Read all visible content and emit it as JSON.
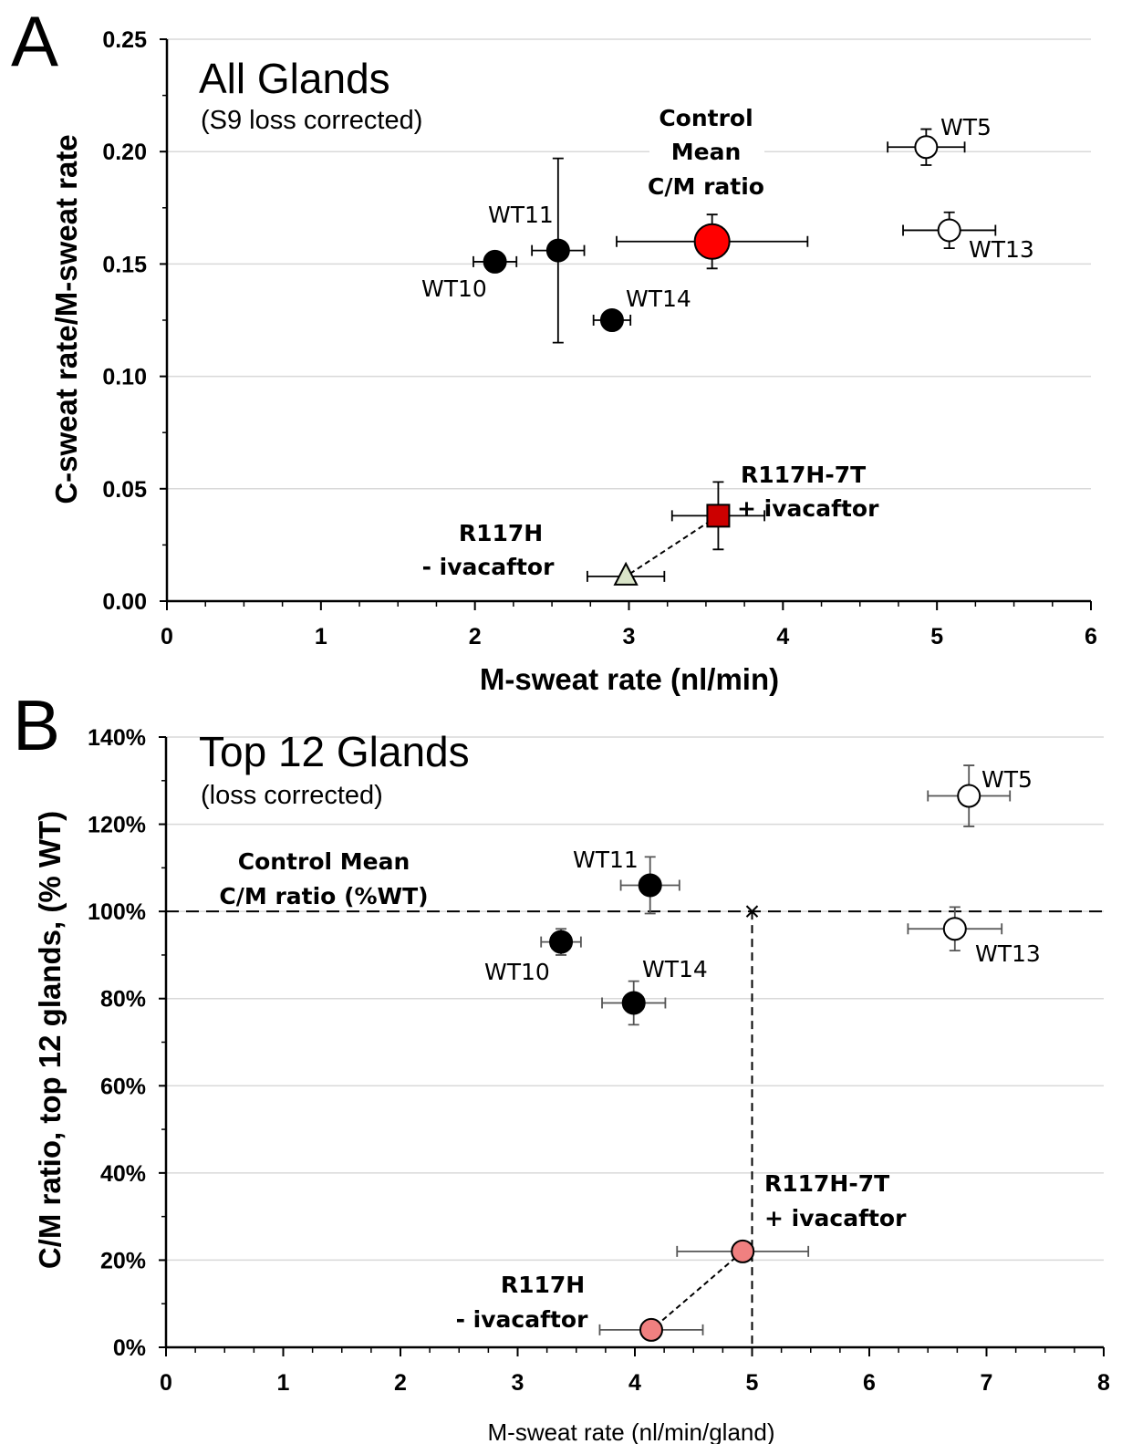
{
  "chart_data": [
    {
      "panel": "A",
      "type": "scatter",
      "title": "All Glands",
      "subtitle": "(S9 loss corrected)",
      "xlabel": "M-sweat rate (nl/min)",
      "ylabel": "C-sweat rate/M-sweat rate",
      "xlim": [
        0,
        6
      ],
      "ylim": [
        0,
        0.25
      ],
      "x_ticks": [
        "0",
        "1",
        "2",
        "3",
        "4",
        "5",
        "6"
      ],
      "y_ticks": [
        "0.00",
        "0.05",
        "0.10",
        "0.15",
        "0.20",
        "0.25"
      ],
      "grid": true,
      "points": [
        {
          "label": "WT5",
          "x": 4.93,
          "y": 0.202,
          "xerr": 0.25,
          "yerr": 0.008,
          "marker": "circle",
          "fill": "#ffffff"
        },
        {
          "label": "WT13",
          "x": 5.08,
          "y": 0.165,
          "xerr": 0.3,
          "yerr": 0.008,
          "marker": "circle",
          "fill": "#ffffff"
        },
        {
          "label": "WT11",
          "x": 2.54,
          "y": 0.156,
          "xerr": 0.17,
          "yerr": 0.041,
          "marker": "circle",
          "fill": "#000000"
        },
        {
          "label": "WT10",
          "x": 2.13,
          "y": 0.151,
          "xerr": 0.14,
          "yerr": 0.0,
          "marker": "circle",
          "fill": "#000000"
        },
        {
          "label": "WT14",
          "x": 2.89,
          "y": 0.125,
          "xerr": 0.12,
          "yerr": 0.0,
          "marker": "circle",
          "fill": "#000000"
        },
        {
          "label": "Control Mean C/M ratio",
          "x": 3.54,
          "y": 0.16,
          "xerr": 0.62,
          "yerr": 0.012,
          "marker": "circle-large",
          "fill": "#ff0000"
        },
        {
          "label": "R117H-7T + ivacaftor",
          "x": 3.58,
          "y": 0.038,
          "xerr": 0.3,
          "yerr": 0.015,
          "marker": "square",
          "fill": "#cc0000"
        },
        {
          "label": "R117H - ivacaftor",
          "x": 2.98,
          "y": 0.011,
          "xerr": 0.25,
          "yerr": 0.0,
          "marker": "triangle",
          "fill": "#d9e4c8"
        }
      ],
      "annotations": [
        {
          "text": "WT5"
        },
        {
          "text": "WT13"
        },
        {
          "text": "WT11"
        },
        {
          "text": "WT10"
        },
        {
          "text": "WT14"
        },
        {
          "text": "Control",
          "bold": true
        },
        {
          "text": "Mean",
          "bold": true
        },
        {
          "text": "C/M ratio",
          "bold": true
        },
        {
          "text": "R117H-7T",
          "bold": true
        },
        {
          "text": "+ ivacaftor",
          "bold": true
        },
        {
          "text": "R117H",
          "bold": true
        },
        {
          "text": "- ivacaftor",
          "bold": true
        }
      ]
    },
    {
      "panel": "B",
      "type": "scatter",
      "title": "Top 12 Glands",
      "subtitle": "(loss corrected)",
      "xlabel": "M-sweat rate (nl/min/gland)",
      "ylabel": "C/M ratio, top 12 glands, (% WT)",
      "xlim": [
        0,
        8
      ],
      "ylim": [
        0,
        140
      ],
      "x_ticks": [
        "0",
        "1",
        "2",
        "3",
        "4",
        "5",
        "6",
        "7",
        "8"
      ],
      "y_ticks": [
        "0%",
        "20%",
        "40%",
        "60%",
        "80%",
        "100%",
        "120%",
        "140%"
      ],
      "grid": true,
      "reference": {
        "x": 5.0,
        "y": 100
      },
      "points": [
        {
          "label": "WT5",
          "x": 6.85,
          "y": 126.5,
          "xerr": 0.35,
          "yerr": 7.0,
          "marker": "circle",
          "fill": "#ffffff"
        },
        {
          "label": "WT13",
          "x": 6.73,
          "y": 96,
          "xerr": 0.4,
          "yerr": 5.0,
          "marker": "circle",
          "fill": "#ffffff"
        },
        {
          "label": "WT11",
          "x": 4.13,
          "y": 106,
          "xerr": 0.25,
          "yerr": 6.5,
          "marker": "circle",
          "fill": "#000000"
        },
        {
          "label": "WT10",
          "x": 3.37,
          "y": 93,
          "xerr": 0.17,
          "yerr": 3.0,
          "marker": "circle",
          "fill": "#000000"
        },
        {
          "label": "WT14",
          "x": 3.99,
          "y": 79,
          "xerr": 0.27,
          "yerr": 5.0,
          "marker": "circle",
          "fill": "#000000"
        },
        {
          "label": "R117H-7T + ivacaftor",
          "x": 4.92,
          "y": 22,
          "xerr": 0.56,
          "yerr": 0.0,
          "marker": "circle",
          "fill": "#f08080"
        },
        {
          "label": "R117H - ivacaftor",
          "x": 4.14,
          "y": 4,
          "xerr": 0.44,
          "yerr": 0.0,
          "marker": "circle",
          "fill": "#f08080"
        }
      ],
      "annotations": [
        {
          "text": "WT5"
        },
        {
          "text": "WT13"
        },
        {
          "text": "WT11"
        },
        {
          "text": "WT10"
        },
        {
          "text": "WT14"
        },
        {
          "text": "Control Mean",
          "bold": true
        },
        {
          "text": "C/M ratio (%WT)",
          "bold": true
        },
        {
          "text": "R117H-7T",
          "bold": true
        },
        {
          "text": "+ ivacaftor",
          "bold": true
        },
        {
          "text": "R117H",
          "bold": true
        },
        {
          "text": "- ivacaftor",
          "bold": true
        }
      ]
    }
  ],
  "panel_labels": [
    "A",
    "B"
  ]
}
